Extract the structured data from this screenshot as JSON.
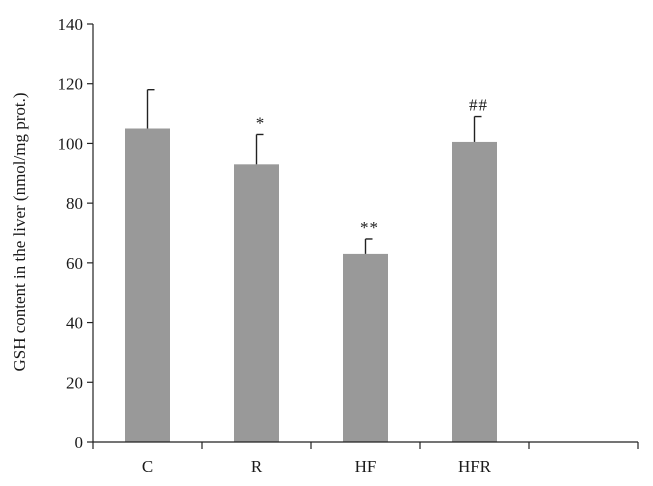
{
  "chart_data": {
    "type": "bar",
    "title": "",
    "xlabel": "",
    "ylabel": "GSH content in the liver (nmol/mg prot.)",
    "categories": [
      "C",
      "R",
      "HF",
      "HFR",
      ""
    ],
    "values": [
      105,
      93,
      63,
      100.5,
      null
    ],
    "error_plus": [
      13,
      10,
      5,
      8.5,
      null
    ],
    "annotations": [
      "",
      "*",
      "**",
      "##",
      ""
    ],
    "ylim": [
      0,
      140
    ],
    "yticks": [
      0,
      20,
      40,
      60,
      80,
      100,
      120,
      140
    ],
    "grid": false,
    "legend": "none",
    "bar_color": "#999999"
  }
}
